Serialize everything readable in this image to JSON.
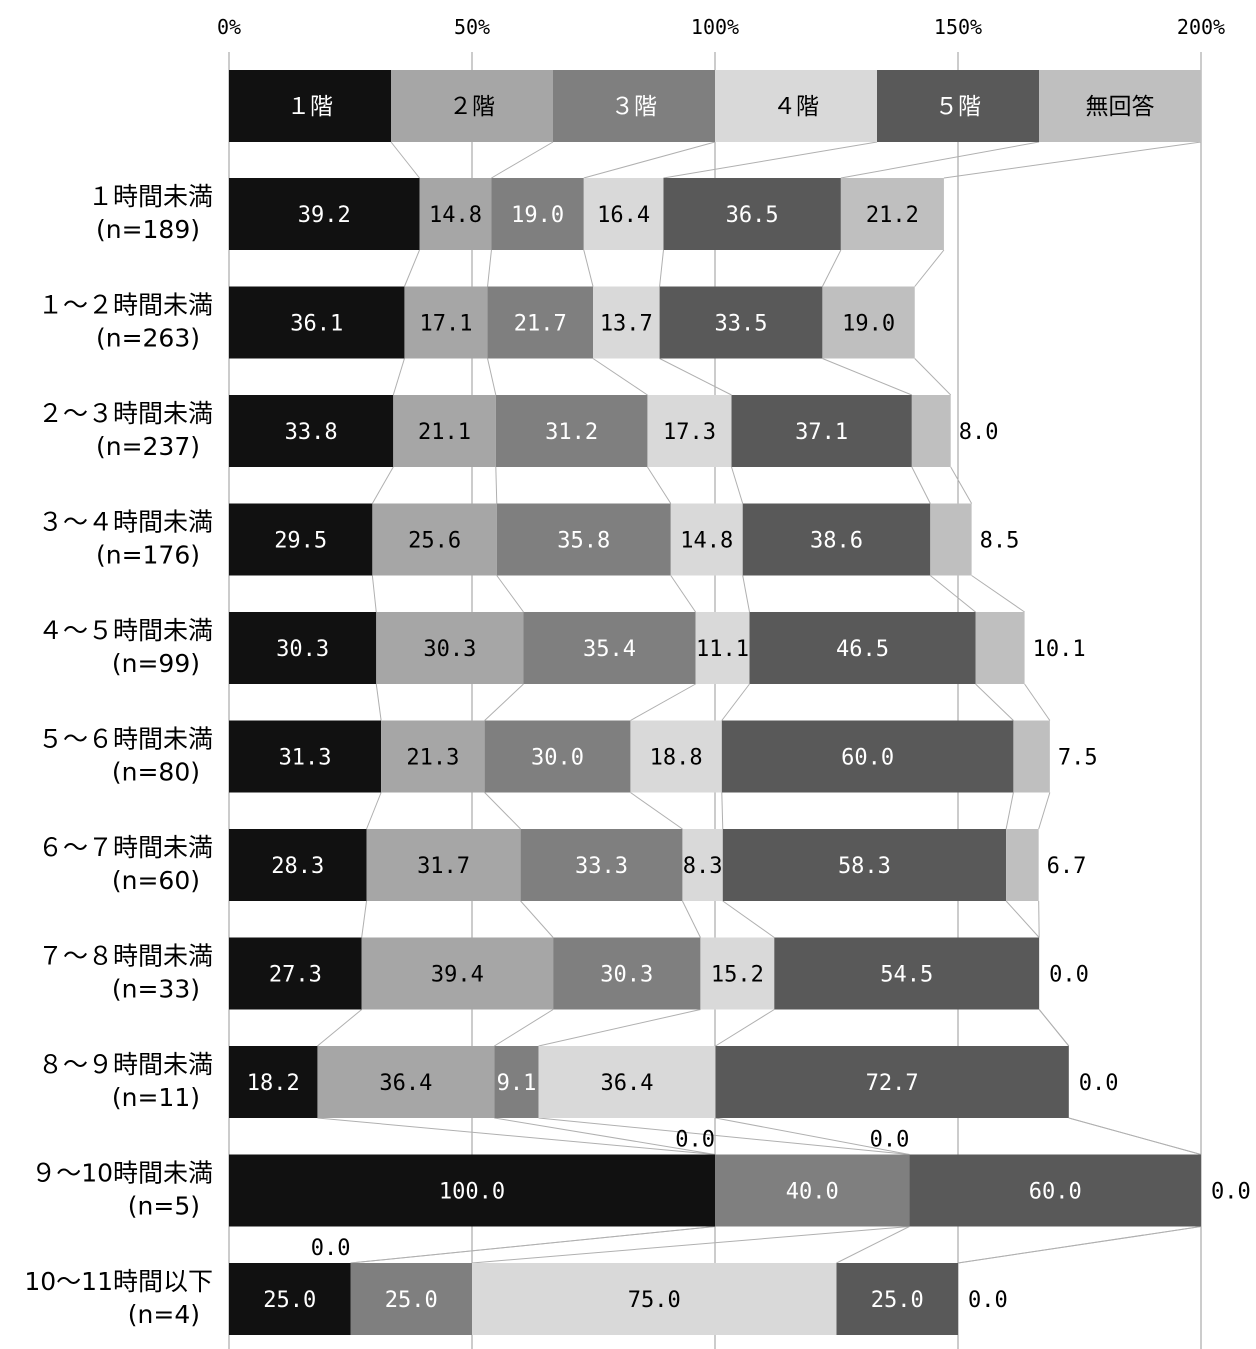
{
  "chart_data": {
    "type": "bar",
    "stacked": true,
    "orientation": "horizontal",
    "x_ticks": [
      "0%",
      "50%",
      "100%",
      "150%",
      "200%"
    ],
    "xlim": [
      0,
      200
    ],
    "grid": true,
    "legend_position": "top",
    "series": [
      {
        "name": "１階",
        "color": "#111111",
        "text_color": "#ffffff"
      },
      {
        "name": "２階",
        "color": "#a6a6a6",
        "text_color": "#000000"
      },
      {
        "name": "３階",
        "color": "#7f7f7f",
        "text_color": "#ffffff"
      },
      {
        "name": "４階",
        "color": "#d9d9d9",
        "text_color": "#000000"
      },
      {
        "name": "５階",
        "color": "#595959",
        "text_color": "#ffffff"
      },
      {
        "name": "無回答",
        "color": "#bfbfbf",
        "text_color": "#000000"
      }
    ],
    "rows": [
      {
        "label": "１時間未満",
        "n": "(n=189)",
        "values": [
          39.2,
          14.8,
          19.0,
          16.4,
          36.5,
          21.2
        ],
        "labels": [
          "39.2",
          "14.8",
          "19.0",
          "16.4",
          "36.5",
          "21.2"
        ]
      },
      {
        "label": "１～２時間未満",
        "n": "(n=263)",
        "values": [
          36.1,
          17.1,
          21.7,
          13.7,
          33.5,
          19.0
        ],
        "labels": [
          "36.1",
          "17.1",
          "21.7",
          "13.7",
          "33.5",
          "19.0"
        ]
      },
      {
        "label": "２～３時間未満",
        "n": "(n=237)",
        "values": [
          33.8,
          21.1,
          31.2,
          17.3,
          37.1,
          8.0
        ],
        "labels": [
          "33.8",
          "21.1",
          "31.2",
          "17.3",
          "37.1",
          "8.0"
        ]
      },
      {
        "label": "３～４時間未満",
        "n": "(n=176)",
        "values": [
          29.5,
          25.6,
          35.8,
          14.8,
          38.6,
          8.5
        ],
        "labels": [
          "29.5",
          "25.6",
          "35.8",
          "14.8",
          "38.6",
          "8.5"
        ]
      },
      {
        "label": "４～５時間未満",
        "n": "(n=99)",
        "values": [
          30.3,
          30.3,
          35.4,
          11.1,
          46.5,
          10.1
        ],
        "labels": [
          "30.3",
          "30.3",
          "35.4",
          "11.1",
          "46.5",
          "10.1"
        ]
      },
      {
        "label": "５～６時間未満",
        "n": "(n=80)",
        "values": [
          31.3,
          21.3,
          30.0,
          18.8,
          60.0,
          7.5
        ],
        "labels": [
          "31.3",
          "21.3",
          "30.0",
          "18.8",
          "60.0",
          "7.5"
        ]
      },
      {
        "label": "６～７時間未満",
        "n": "(n=60)",
        "values": [
          28.3,
          31.7,
          33.3,
          8.3,
          58.3,
          6.7
        ],
        "labels": [
          "28.3",
          "31.7",
          "33.3",
          "8.3",
          "58.3",
          "6.7"
        ]
      },
      {
        "label": "７～８時間未満",
        "n": "(n=33)",
        "values": [
          27.3,
          39.4,
          30.3,
          15.2,
          54.5,
          0.0
        ],
        "labels": [
          "27.3",
          "39.4",
          "30.3",
          "15.2",
          "54.5",
          "0.0"
        ]
      },
      {
        "label": "８～９時間未満",
        "n": "(n=11)",
        "values": [
          18.2,
          36.4,
          9.1,
          36.4,
          72.7,
          0.0
        ],
        "labels": [
          "18.2",
          "36.4",
          "9.1",
          "36.4",
          "72.7",
          "0.0"
        ]
      },
      {
        "label": "９～10時間未満",
        "n": "(n=5)",
        "values": [
          100.0,
          0.0,
          40.0,
          0.0,
          60.0,
          0.0
        ],
        "labels": [
          "100.0",
          "0.0",
          "40.0",
          "0.0",
          "60.0",
          "0.0"
        ]
      },
      {
        "label": "10～11時間以下",
        "n": "(n=4)",
        "values": [
          25.0,
          0.0,
          25.0,
          75.0,
          25.0,
          0.0
        ],
        "labels": [
          "25.0",
          "0.0",
          "25.0",
          "75.0",
          "25.0",
          "0.0"
        ]
      }
    ]
  }
}
